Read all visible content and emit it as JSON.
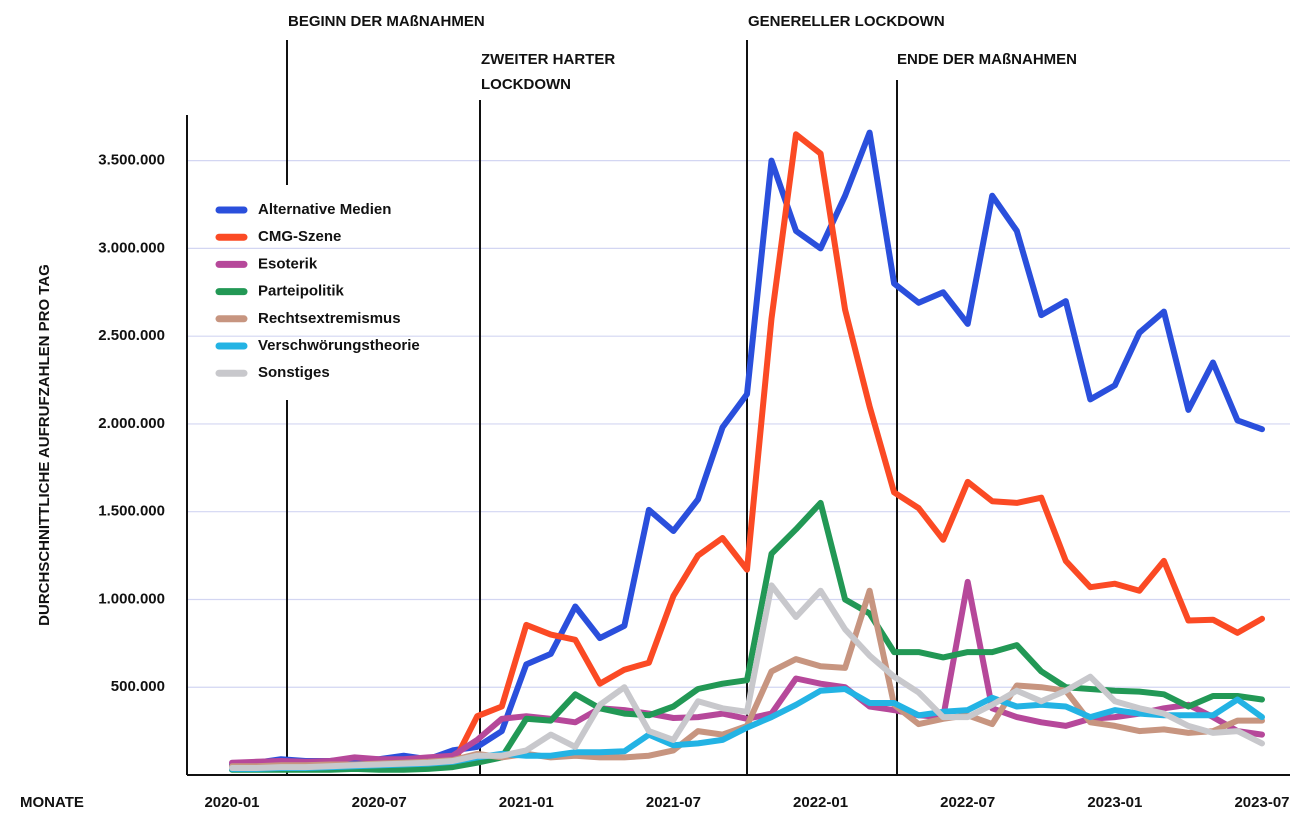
{
  "chart_data": {
    "type": "line",
    "xlabel": "MONATE",
    "ylabel": "DURCHSCHNITTLICHE AUFRUFZAHLEN PRO TAG",
    "annotations": [
      {
        "text": [
          "BEGINN DER MAßNAHMEN"
        ]
      },
      {
        "text": [
          "ZWEITER HARTER",
          "LOCKDOWN"
        ]
      },
      {
        "text": [
          "GENERELLER LOCKDOWN"
        ]
      },
      {
        "text": [
          "ENDE DER MAßNAHMEN"
        ]
      }
    ],
    "categories": [
      "2020-01",
      null,
      null,
      null,
      null,
      null,
      "2020-07",
      null,
      null,
      null,
      null,
      null,
      "2021-01",
      null,
      null,
      null,
      null,
      null,
      "2021-07",
      null,
      null,
      null,
      null,
      null,
      "2022-01",
      null,
      null,
      null,
      null,
      null,
      "2022-07",
      null,
      null,
      null,
      null,
      null,
      "2023-01",
      null,
      null,
      null,
      null,
      null,
      "2023-07"
    ],
    "ylim": [
      0,
      3760000
    ],
    "yticks": [
      {
        "value": 500000,
        "label": "500.000"
      },
      {
        "value": 1000000,
        "label": "1.000.000"
      },
      {
        "value": 1500000,
        "label": "1.500.000"
      },
      {
        "value": 2000000,
        "label": "2.000.000"
      },
      {
        "value": 2500000,
        "label": "2.500.000"
      },
      {
        "value": 3000000,
        "label": "3.000.000"
      },
      {
        "value": 3500000,
        "label": "3.500.000"
      }
    ],
    "grid": true,
    "legend": "upper left",
    "series": [
      {
        "name": "Alternative Medien",
        "color": "#2a4fdc",
        "values": [
          60000,
          70000,
          90000,
          80000,
          80000,
          90000,
          90000,
          110000,
          90000,
          140000,
          160000,
          250000,
          630000,
          690000,
          960000,
          780000,
          850000,
          1510000,
          1390000,
          1570000,
          1980000,
          2170000,
          3500000,
          3100000,
          3000000,
          3300000,
          3660000,
          2800000,
          2690000,
          2750000,
          2570000,
          3300000,
          3100000,
          2620000,
          2700000,
          2140000,
          2220000,
          2520000,
          2640000,
          2080000,
          2350000,
          2020000,
          1970000
        ]
      },
      {
        "name": "CMG-Szene",
        "color": "#fb4a24",
        "values": [
          40000,
          40000,
          45000,
          45000,
          40000,
          45000,
          50000,
          50000,
          55000,
          60000,
          335000,
          390000,
          855000,
          800000,
          770000,
          520000,
          600000,
          640000,
          1020000,
          1250000,
          1350000,
          1170000,
          2600000,
          3650000,
          3540000,
          2650000,
          2100000,
          1610000,
          1520000,
          1340000,
          1670000,
          1560000,
          1550000,
          1580000,
          1220000,
          1070000,
          1090000,
          1050000,
          1220000,
          880000,
          885000,
          810000,
          890000
        ]
      },
      {
        "name": "Esoterik",
        "color": "#b6489a",
        "values": [
          70000,
          75000,
          80000,
          75000,
          80000,
          100000,
          90000,
          90000,
          100000,
          110000,
          200000,
          320000,
          335000,
          320000,
          300000,
          380000,
          370000,
          350000,
          325000,
          330000,
          350000,
          320000,
          350000,
          550000,
          520000,
          500000,
          390000,
          370000,
          340000,
          330000,
          1100000,
          380000,
          330000,
          300000,
          280000,
          320000,
          330000,
          350000,
          380000,
          400000,
          330000,
          250000,
          230000
        ]
      },
      {
        "name": "Parteipolitik",
        "color": "#229855",
        "values": [
          30000,
          30000,
          30000,
          30000,
          30000,
          35000,
          30000,
          30000,
          35000,
          45000,
          70000,
          100000,
          320000,
          310000,
          460000,
          380000,
          350000,
          340000,
          390000,
          490000,
          520000,
          540000,
          1260000,
          1400000,
          1550000,
          1000000,
          920000,
          700000,
          700000,
          670000,
          700000,
          700000,
          740000,
          590000,
          500000,
          490000,
          480000,
          475000,
          460000,
          390000,
          450000,
          450000,
          430000
        ]
      },
      {
        "name": "Rechtsextremismus",
        "color": "#c79580",
        "values": [
          50000,
          50000,
          55000,
          55000,
          60000,
          60000,
          65000,
          70000,
          75000,
          85000,
          120000,
          100000,
          120000,
          100000,
          110000,
          100000,
          100000,
          110000,
          140000,
          250000,
          230000,
          280000,
          590000,
          660000,
          620000,
          610000,
          1050000,
          400000,
          290000,
          320000,
          340000,
          290000,
          510000,
          500000,
          480000,
          300000,
          280000,
          250000,
          260000,
          240000,
          250000,
          310000,
          310000
        ]
      },
      {
        "name": "Verschwörungstheorie",
        "color": "#23b3e4",
        "values": [
          35000,
          35000,
          40000,
          40000,
          45000,
          50000,
          55000,
          60000,
          65000,
          75000,
          100000,
          120000,
          110000,
          110000,
          130000,
          130000,
          135000,
          230000,
          170000,
          180000,
          200000,
          270000,
          330000,
          400000,
          480000,
          490000,
          410000,
          410000,
          340000,
          360000,
          370000,
          440000,
          390000,
          400000,
          390000,
          330000,
          370000,
          350000,
          340000,
          340000,
          340000,
          430000,
          330000
        ]
      },
      {
        "name": "Sonstiges",
        "color": "#c8c8cc",
        "values": [
          40000,
          40000,
          45000,
          45000,
          50000,
          55000,
          60000,
          65000,
          70000,
          80000,
          110000,
          110000,
          140000,
          230000,
          160000,
          400000,
          500000,
          250000,
          200000,
          420000,
          380000,
          360000,
          1080000,
          900000,
          1050000,
          830000,
          680000,
          560000,
          470000,
          330000,
          330000,
          400000,
          480000,
          420000,
          480000,
          560000,
          420000,
          380000,
          350000,
          280000,
          240000,
          250000,
          180000
        ]
      }
    ]
  }
}
